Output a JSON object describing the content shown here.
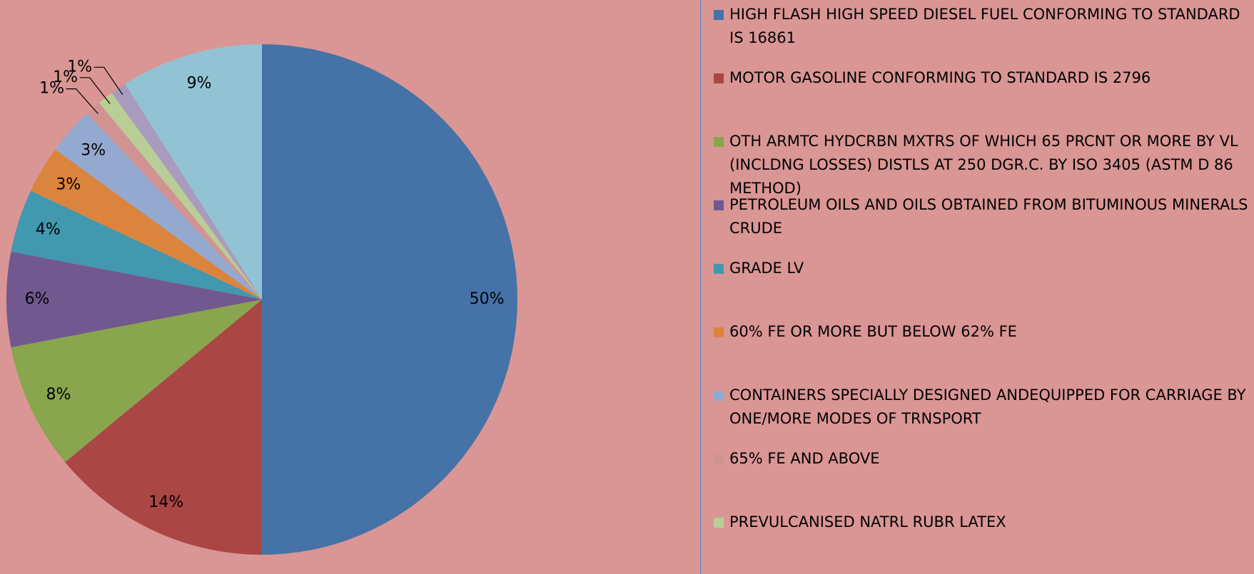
{
  "chart_data": {
    "type": "pie",
    "categories": [
      "HIGH FLASH HIGH SPEED DIESEL FUEL CONFORMING TO STANDARD IS 16861",
      "MOTOR GASOLINE CONFORMING TO STANDARD IS 2796",
      "OTH ARMTC HYDCRBN MXTRS OF WHICH 65 PRCNT OR MORE BY VL (INCLDNG LOSSES) DISTLS AT 250 DGR.C. BY ISO 3405 (ASTM D 86 METHOD)",
      "PETROLEUM OILS AND OILS OBTAINED FROM BITUMINOUS MINERALS CRUDE",
      "GRADE LV",
      "60% FE OR MORE BUT BELOW 62% FE",
      "CONTAINERS SPECIALLY DESIGNED ANDEQUIPPED FOR CARRIAGE BY ONE/MORE MODES OF TRNSPORT",
      "65% FE AND ABOVE",
      "PREVULCANISED NATRL RUBR LATEX",
      null,
      null
    ],
    "values": [
      50,
      14,
      8,
      6,
      4,
      3,
      3,
      1,
      1,
      1,
      9
    ],
    "value_labels": [
      "50%",
      "14%",
      "8%",
      "6%",
      "4%",
      "3%",
      "3%",
      "1%",
      "1%",
      "1%",
      "9%"
    ],
    "colors": [
      "#4572a7",
      "#aa4643",
      "#89a54e",
      "#71588f",
      "#4198af",
      "#db843d",
      "#93a9cf",
      "#d19392",
      "#b9cd96",
      "#a99bbd",
      "#92c3d4"
    ],
    "legend": "right"
  }
}
